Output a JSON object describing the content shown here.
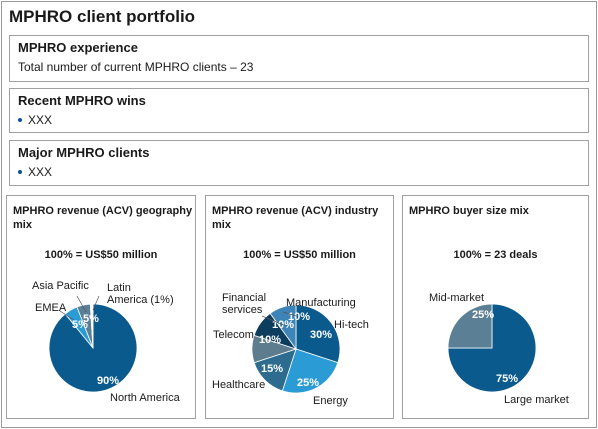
{
  "page_title": "MPHRO client portfolio",
  "experience": {
    "heading": "MPHRO experience",
    "text": "Total number of current MPHRO clients – 23"
  },
  "wins": {
    "heading": "Recent MPHRO wins",
    "item": "XXX"
  },
  "clients": {
    "heading": "Major MPHRO clients",
    "item": "XXX"
  },
  "chart_data": [
    {
      "type": "pie",
      "title": "MPHRO revenue (ACV) geography mix",
      "subtitle": "100% = US$50 million",
      "slices": [
        {
          "name": "North America",
          "value": 90,
          "label": "90%",
          "color": "#0b5a8e"
        },
        {
          "name": "EMEA",
          "value": 5,
          "label": "5%",
          "color": "#2b9bd6"
        },
        {
          "name": "Asia Pacific",
          "value": 5,
          "label": "5%",
          "color": "#5b7f94"
        },
        {
          "name": "Latin America (1%)",
          "value": 1,
          "label": "",
          "color": "#ffffff"
        }
      ]
    },
    {
      "type": "pie",
      "title": "MPHRO revenue (ACV) industry mix",
      "subtitle": "100% = US$50 million",
      "slices": [
        {
          "name": "Hi-tech",
          "value": 30,
          "label": "30%",
          "color": "#0b5a8e"
        },
        {
          "name": "Energy",
          "value": 25,
          "label": "25%",
          "color": "#2b9bd6"
        },
        {
          "name": "Healthcare",
          "value": 15,
          "label": "15%",
          "color": "#2d6b8f"
        },
        {
          "name": "Telecom",
          "value": 10,
          "label": "10%",
          "color": "#5d7c8d"
        },
        {
          "name": "Financial services",
          "value": 10,
          "label": "10%",
          "color": "#0d3d5e"
        },
        {
          "name": "Manufacturing",
          "value": 10,
          "label": "10%",
          "color": "#3d85b8"
        }
      ]
    },
    {
      "type": "pie",
      "title": "MPHRO buyer size mix",
      "subtitle": "100% = 23 deals",
      "slices": [
        {
          "name": "Large market",
          "value": 75,
          "label": "75%",
          "color": "#0b5a8e"
        },
        {
          "name": "Mid-market",
          "value": 25,
          "label": "25%",
          "color": "#5b7f94"
        }
      ]
    }
  ]
}
